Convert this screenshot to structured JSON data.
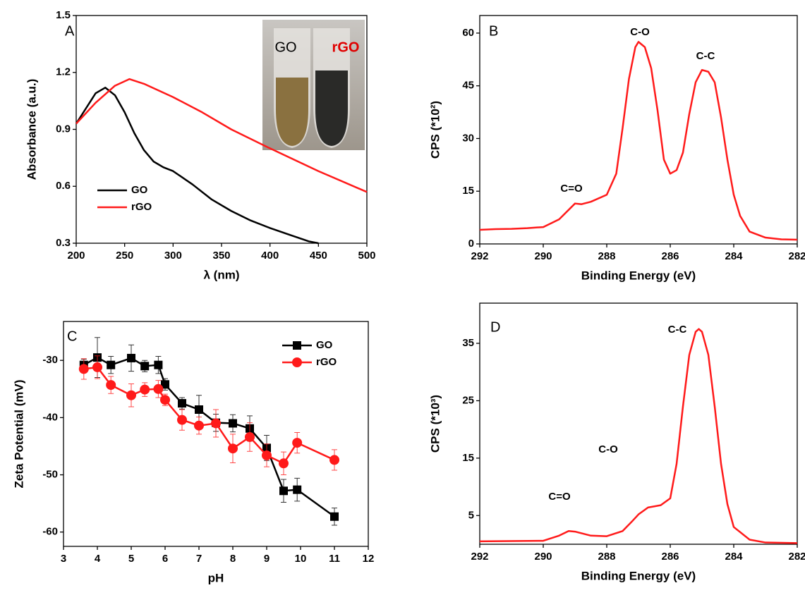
{
  "chart_data": [
    {
      "type": "line",
      "panel_label": "A",
      "x_label": "λ (nm)",
      "y_label": "Absorbance (a.u.)",
      "xlim": [
        200,
        500
      ],
      "xticks": [
        200,
        250,
        300,
        350,
        400,
        450,
        500
      ],
      "ylim": [
        0.3,
        1.5
      ],
      "yticks": [
        0.3,
        0.6,
        0.9,
        1.2,
        1.5
      ],
      "annotations": [
        "GO",
        "rGO"
      ],
      "series": [
        {
          "name": "GO",
          "color": "#000000",
          "x": [
            200,
            210,
            220,
            230,
            240,
            250,
            260,
            270,
            280,
            290,
            300,
            320,
            340,
            360,
            380,
            400,
            420,
            440,
            450
          ],
          "values": [
            0.93,
            1.01,
            1.09,
            1.12,
            1.08,
            0.99,
            0.88,
            0.79,
            0.73,
            0.7,
            0.68,
            0.61,
            0.53,
            0.47,
            0.42,
            0.38,
            0.345,
            0.31,
            0.3
          ]
        },
        {
          "name": "rGO",
          "color": "#ff1a1a",
          "x": [
            200,
            220,
            240,
            255,
            270,
            300,
            330,
            360,
            400,
            450,
            500
          ],
          "values": [
            0.93,
            1.04,
            1.13,
            1.165,
            1.14,
            1.07,
            0.99,
            0.9,
            0.8,
            0.68,
            0.57
          ]
        }
      ]
    },
    {
      "type": "line",
      "panel_label": "B",
      "x_label": "Binding Energy (eV)",
      "y_label": "CPS (*10²)",
      "xlim": [
        292,
        282
      ],
      "xticks": [
        292,
        290,
        288,
        286,
        284,
        282
      ],
      "ylim": [
        0,
        65
      ],
      "yticks": [
        0,
        15,
        30,
        45,
        60
      ],
      "annotations": [
        "C-O",
        "C-C",
        "C=O"
      ],
      "series": [
        {
          "color": "#ff1a1a",
          "x": [
            292,
            291.5,
            291,
            290.5,
            290,
            289.5,
            289,
            288.8,
            288.5,
            288,
            287.7,
            287.5,
            287.3,
            287.1,
            287,
            286.8,
            286.6,
            286.4,
            286.2,
            286,
            285.8,
            285.6,
            285.4,
            285.2,
            285,
            284.8,
            284.6,
            284.4,
            284.2,
            284,
            283.8,
            283.5,
            283,
            282.5,
            282
          ],
          "values": [
            4,
            4.2,
            4.3,
            4.5,
            4.8,
            7,
            11.5,
            11.3,
            12,
            14,
            20,
            33,
            47,
            56,
            57.5,
            56,
            50,
            38,
            24,
            20,
            21,
            26,
            37,
            46,
            49.5,
            49,
            46,
            36,
            24,
            14,
            8,
            3.5,
            1.8,
            1.3,
            1.2
          ]
        }
      ]
    },
    {
      "type": "line",
      "panel_label": "C",
      "x_label": "pH",
      "y_label": "Zeta Potential (mV)",
      "xlim": [
        3,
        12
      ],
      "xticks": [
        3,
        4,
        5,
        6,
        7,
        8,
        9,
        10,
        11,
        12
      ],
      "ylim": [
        -62.5,
        -23.2
      ],
      "yticks": [
        -60,
        -50,
        -40,
        -30
      ],
      "legend": "upper right",
      "series": [
        {
          "name": "GO",
          "color": "#000000",
          "marker": "square",
          "x": [
            3.6,
            4,
            4.4,
            5,
            5.4,
            5.8,
            6,
            6.5,
            7,
            7.5,
            8,
            8.5,
            9,
            9.5,
            9.9,
            11
          ],
          "values": [
            -30.8,
            -29.5,
            -30.8,
            -29.6,
            -31,
            -30.8,
            -34.2,
            -37.5,
            -38.6,
            -40.9,
            -41,
            -41.9,
            -45.3,
            -52.8,
            -52.6,
            -57.3
          ],
          "errors": [
            1,
            3.5,
            1.5,
            2.3,
            1,
            1.5,
            1,
            1,
            2.5,
            1.5,
            1.5,
            2.2,
            2.2,
            2,
            2,
            1.5
          ]
        },
        {
          "name": "rGO",
          "color": "#ff1a1a",
          "marker": "circle",
          "x": [
            3.6,
            4,
            4.4,
            5,
            5.4,
            5.8,
            6,
            6.5,
            7,
            7.5,
            8,
            8.5,
            9,
            9.5,
            9.9,
            11
          ],
          "values": [
            -31.5,
            -31.2,
            -34.3,
            -36.1,
            -35.1,
            -35,
            -36.9,
            -40.4,
            -41.4,
            -41,
            -45.4,
            -43.4,
            -46.6,
            -48,
            -44.4,
            -47.4
          ],
          "errors": [
            1.8,
            2,
            1.5,
            2,
            1.2,
            1.5,
            1,
            1.8,
            1.5,
            2.4,
            2.5,
            2.5,
            2,
            2,
            1.8,
            1.8
          ]
        }
      ]
    },
    {
      "type": "line",
      "panel_label": "D",
      "x_label": "Binding Energy (eV)",
      "y_label": "CPS (*10³)",
      "xlim": [
        292,
        282
      ],
      "xticks": [
        292,
        290,
        288,
        286,
        284,
        282
      ],
      "ylim": [
        0,
        42
      ],
      "yticks": [
        5,
        15,
        25,
        35
      ],
      "annotations": [
        "C-C",
        "C-O",
        "C=O"
      ],
      "series": [
        {
          "color": "#ff1a1a",
          "x": [
            292,
            290,
            289.5,
            289.2,
            289,
            288.5,
            288,
            287.5,
            287.2,
            287,
            286.7,
            286.3,
            286,
            285.8,
            285.6,
            285.4,
            285.2,
            285.1,
            285,
            284.8,
            284.6,
            284.4,
            284.2,
            284,
            283.5,
            283,
            282
          ],
          "values": [
            0.5,
            0.6,
            1.5,
            2.3,
            2.2,
            1.5,
            1.4,
            2.3,
            4,
            5.2,
            6.4,
            6.8,
            8,
            14,
            24,
            33,
            37,
            37.5,
            37,
            33,
            24,
            14,
            7,
            3,
            0.8,
            0.3,
            0.2
          ]
        }
      ]
    }
  ]
}
